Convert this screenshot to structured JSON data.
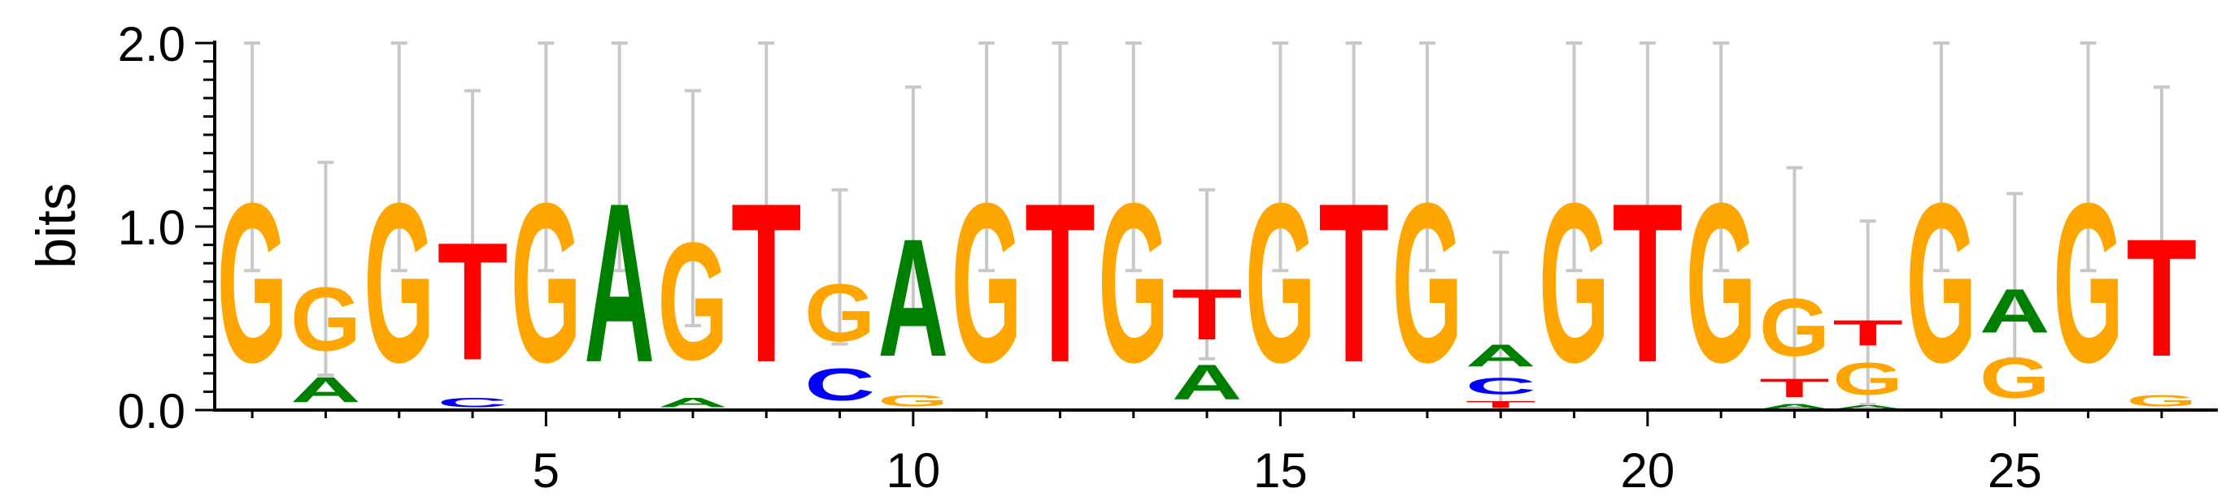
{
  "chart_data": {
    "type": "sequence-logo",
    "ylabel": "bits",
    "ylim": [
      0,
      2.0
    ],
    "y_ticks": [
      "0.0",
      "1.0",
      "2.0"
    ],
    "x_ticks": [
      "5",
      "10",
      "15",
      "20",
      "25"
    ],
    "positions": [
      {
        "pos": 1,
        "letters": [
          {
            "b": "G",
            "h": 1.38
          }
        ],
        "err": 0.62
      },
      {
        "pos": 2,
        "letters": [
          {
            "b": "A",
            "h": 0.22
          },
          {
            "b": "G",
            "h": 0.55
          }
        ],
        "err": 0.58
      },
      {
        "pos": 3,
        "letters": [
          {
            "b": "G",
            "h": 1.38
          }
        ],
        "err": 0.62
      },
      {
        "pos": 4,
        "letters": [
          {
            "b": "C",
            "h": 0.08
          },
          {
            "b": "T",
            "h": 1.02
          }
        ],
        "err": 0.64
      },
      {
        "pos": 5,
        "letters": [
          {
            "b": "G",
            "h": 1.38
          }
        ],
        "err": 0.62
      },
      {
        "pos": 6,
        "letters": [
          {
            "b": "A",
            "h": 1.38
          }
        ],
        "err": 0.62
      },
      {
        "pos": 7,
        "letters": [
          {
            "b": "A",
            "h": 0.08
          },
          {
            "b": "G",
            "h": 1.02
          }
        ],
        "err": 0.64
      },
      {
        "pos": 8,
        "letters": [
          {
            "b": "T",
            "h": 1.38
          }
        ],
        "err": 0.62
      },
      {
        "pos": 9,
        "letters": [
          {
            "b": "C",
            "h": 0.28
          },
          {
            "b": "G",
            "h": 0.5
          }
        ],
        "err": 0.42
      },
      {
        "pos": 10,
        "letters": [
          {
            "b": "G",
            "h": 0.1
          },
          {
            "b": "A",
            "h": 1.02
          }
        ],
        "err": 0.64
      },
      {
        "pos": 11,
        "letters": [
          {
            "b": "G",
            "h": 1.38
          }
        ],
        "err": 0.62
      },
      {
        "pos": 12,
        "letters": [
          {
            "b": "T",
            "h": 1.38
          }
        ],
        "err": 0.62
      },
      {
        "pos": 13,
        "letters": [
          {
            "b": "G",
            "h": 1.38
          }
        ],
        "err": 0.62
      },
      {
        "pos": 14,
        "letters": [
          {
            "b": "A",
            "h": 0.3
          },
          {
            "b": "T",
            "h": 0.44
          }
        ],
        "err": 0.46
      },
      {
        "pos": 15,
        "letters": [
          {
            "b": "G",
            "h": 1.38
          }
        ],
        "err": 0.62
      },
      {
        "pos": 16,
        "letters": [
          {
            "b": "T",
            "h": 1.38
          }
        ],
        "err": 0.62
      },
      {
        "pos": 17,
        "letters": [
          {
            "b": "G",
            "h": 1.38
          }
        ],
        "err": 0.62
      },
      {
        "pos": 18,
        "letters": [
          {
            "b": "T",
            "h": 0.06
          },
          {
            "b": "C",
            "h": 0.14
          },
          {
            "b": "A",
            "h": 0.19
          }
        ],
        "err": 0.47
      },
      {
        "pos": 19,
        "letters": [
          {
            "b": "G",
            "h": 1.38
          }
        ],
        "err": 0.62
      },
      {
        "pos": 20,
        "letters": [
          {
            "b": "T",
            "h": 1.38
          }
        ],
        "err": 0.62
      },
      {
        "pos": 21,
        "letters": [
          {
            "b": "G",
            "h": 1.38
          }
        ],
        "err": 0.62
      },
      {
        "pos": 22,
        "letters": [
          {
            "b": "A",
            "h": 0.04
          },
          {
            "b": "T",
            "h": 0.16
          },
          {
            "b": "G",
            "h": 0.5
          }
        ],
        "err": 0.62
      },
      {
        "pos": 23,
        "letters": [
          {
            "b": "A",
            "h": 0.03
          },
          {
            "b": "G",
            "h": 0.28
          },
          {
            "b": "T",
            "h": 0.22
          }
        ],
        "err": 0.5
      },
      {
        "pos": 24,
        "letters": [
          {
            "b": "G",
            "h": 1.38
          }
        ],
        "err": 0.62
      },
      {
        "pos": 25,
        "letters": [
          {
            "b": "G",
            "h": 0.35
          },
          {
            "b": "A",
            "h": 0.38
          }
        ],
        "err": 0.45
      },
      {
        "pos": 26,
        "letters": [
          {
            "b": "G",
            "h": 1.38
          }
        ],
        "err": 0.62
      },
      {
        "pos": 27,
        "letters": [
          {
            "b": "G",
            "h": 0.1
          },
          {
            "b": "T",
            "h": 1.02
          }
        ],
        "err": 0.64
      }
    ],
    "colors": {
      "A": "#008000",
      "C": "#0000ff",
      "G": "#ffa500",
      "T": "#ff0000",
      "error_bar": "#c8c8c8"
    }
  }
}
